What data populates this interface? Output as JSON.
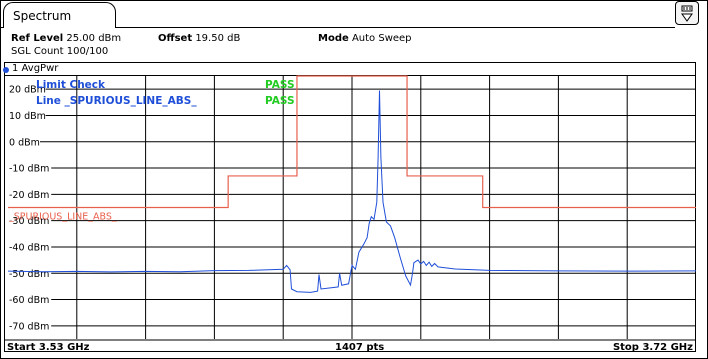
{
  "tab": {
    "label": "Spectrum"
  },
  "header": {
    "ref_level_label": "Ref Level",
    "ref_level_value": "25.00 dBm",
    "offset_label": "Offset",
    "offset_value": "19.50 dB",
    "mode_label": "Mode",
    "mode_value": "Auto Sweep",
    "sgl_count": "SGL Count 100/100"
  },
  "trace": {
    "label": "1 AvgPwr",
    "color": "#1f4fd8"
  },
  "limit": {
    "check_label": "Limit Check",
    "check_result": "PASS",
    "line_label": "Line _SPURIOUS_LINE_ABS_",
    "line_result": "PASS",
    "plot_label": "_SPURIOUS_LINE_ABS_",
    "line_color": "#e8604c",
    "pass_color": "#22cc22"
  },
  "footer": {
    "start": "Start 3.53 GHz",
    "points": "1407 pts",
    "stop": "Stop 3.72 GHz"
  },
  "chart_data": {
    "type": "line",
    "ylim": [
      -75,
      25
    ],
    "y_ticks": [
      {
        "value": 20,
        "label": "20 dBm"
      },
      {
        "value": 10,
        "label": "10 dBm"
      },
      {
        "value": 0,
        "label": "0 dBm"
      },
      {
        "value": -10,
        "label": "-10 dBm"
      },
      {
        "value": -20,
        "label": "-20 dBm"
      },
      {
        "value": -30,
        "label": "-30 dBm"
      },
      {
        "value": -40,
        "label": "-40 dBm"
      },
      {
        "value": -50,
        "label": "-50 dBm"
      },
      {
        "value": -60,
        "label": "-60 dBm"
      },
      {
        "value": -70,
        "label": "-70 dBm"
      }
    ],
    "xlim_ghz": [
      3.53,
      3.72
    ],
    "x_divisions": 10,
    "grid": true,
    "limit_line": [
      {
        "x": 0.0,
        "y": -25.0
      },
      {
        "x": 0.32,
        "y": -25.0
      },
      {
        "x": 0.32,
        "y": -13.0
      },
      {
        "x": 0.42,
        "y": -13.0
      },
      {
        "x": 0.42,
        "y": 25.0
      },
      {
        "x": 0.58,
        "y": 25.0
      },
      {
        "x": 0.58,
        "y": -13.0
      },
      {
        "x": 0.69,
        "y": -13.0
      },
      {
        "x": 0.69,
        "y": -25.0
      },
      {
        "x": 1.0,
        "y": -25.0
      }
    ],
    "trace": [
      {
        "x": 0.0,
        "y": -49.2
      },
      {
        "x": 0.05,
        "y": -49.4
      },
      {
        "x": 0.1,
        "y": -49.3
      },
      {
        "x": 0.15,
        "y": -49.5
      },
      {
        "x": 0.2,
        "y": -49.3
      },
      {
        "x": 0.25,
        "y": -49.4
      },
      {
        "x": 0.3,
        "y": -49.0
      },
      {
        "x": 0.35,
        "y": -48.9
      },
      {
        "x": 0.4,
        "y": -48.5
      },
      {
        "x": 0.405,
        "y": -47.0
      },
      {
        "x": 0.41,
        "y": -48.7
      },
      {
        "x": 0.412,
        "y": -56.0
      },
      {
        "x": 0.42,
        "y": -57.0
      },
      {
        "x": 0.44,
        "y": -57.3
      },
      {
        "x": 0.45,
        "y": -56.8
      },
      {
        "x": 0.452,
        "y": -50.5
      },
      {
        "x": 0.455,
        "y": -56.0
      },
      {
        "x": 0.47,
        "y": -55.5
      },
      {
        "x": 0.48,
        "y": -55.2
      },
      {
        "x": 0.482,
        "y": -50.0
      },
      {
        "x": 0.485,
        "y": -54.6
      },
      {
        "x": 0.495,
        "y": -54.0
      },
      {
        "x": 0.5,
        "y": -47.0
      },
      {
        "x": 0.505,
        "y": -48.5
      },
      {
        "x": 0.51,
        "y": -42.0
      },
      {
        "x": 0.517,
        "y": -39.0
      },
      {
        "x": 0.522,
        "y": -36.5
      },
      {
        "x": 0.525,
        "y": -31.0
      },
      {
        "x": 0.528,
        "y": -28.5
      },
      {
        "x": 0.532,
        "y": -29.5
      },
      {
        "x": 0.536,
        "y": -23.0
      },
      {
        "x": 0.538,
        "y": -6.0
      },
      {
        "x": 0.54,
        "y": 19.5
      },
      {
        "x": 0.542,
        "y": -6.0
      },
      {
        "x": 0.545,
        "y": -23.0
      },
      {
        "x": 0.55,
        "y": -30.5
      },
      {
        "x": 0.556,
        "y": -32.0
      },
      {
        "x": 0.562,
        "y": -36.5
      },
      {
        "x": 0.57,
        "y": -44.0
      },
      {
        "x": 0.578,
        "y": -51.0
      },
      {
        "x": 0.585,
        "y": -54.5
      },
      {
        "x": 0.588,
        "y": -50.0
      },
      {
        "x": 0.59,
        "y": -46.0
      },
      {
        "x": 0.596,
        "y": -45.0
      },
      {
        "x": 0.6,
        "y": -46.5
      },
      {
        "x": 0.604,
        "y": -45.5
      },
      {
        "x": 0.608,
        "y": -47.0
      },
      {
        "x": 0.612,
        "y": -45.8
      },
      {
        "x": 0.616,
        "y": -47.4
      },
      {
        "x": 0.62,
        "y": -46.3
      },
      {
        "x": 0.625,
        "y": -47.6
      },
      {
        "x": 0.632,
        "y": -47.8
      },
      {
        "x": 0.65,
        "y": -48.4
      },
      {
        "x": 0.7,
        "y": -48.9
      },
      {
        "x": 0.8,
        "y": -49.1
      },
      {
        "x": 0.9,
        "y": -49.2
      },
      {
        "x": 1.0,
        "y": -49.1
      }
    ]
  }
}
